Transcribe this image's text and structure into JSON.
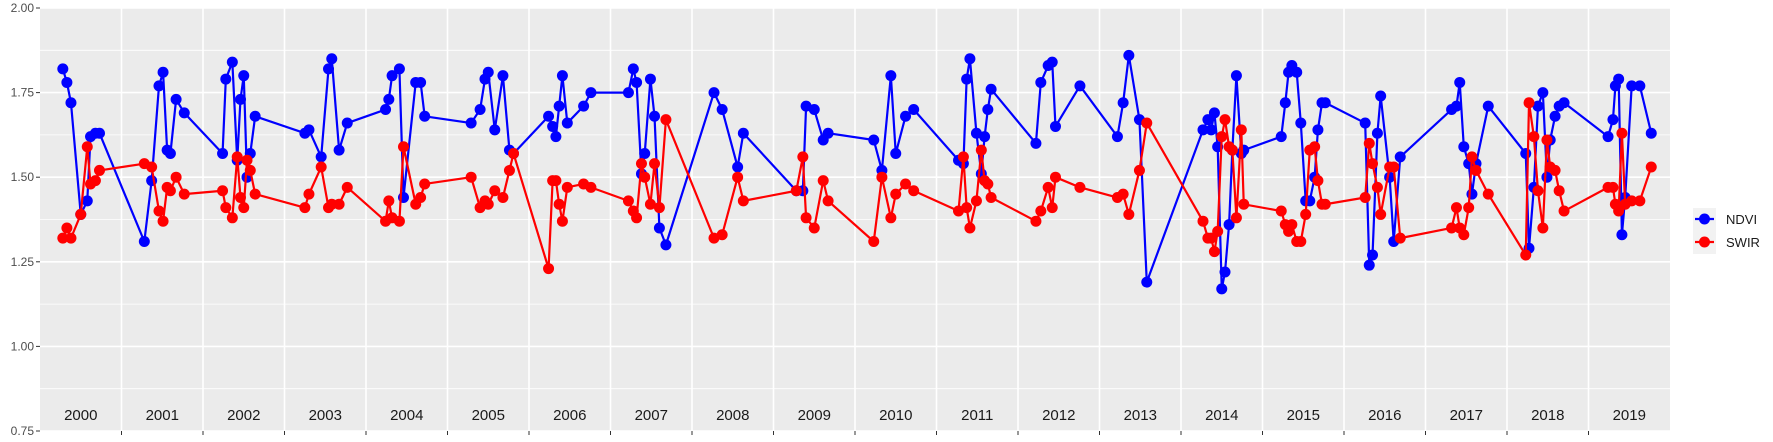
{
  "chart_data": {
    "type": "line",
    "title": "",
    "xlabel": "",
    "ylabel": "",
    "ylim": [
      0.75,
      2.0
    ],
    "yticks": [
      "0.75",
      "1.00",
      "1.25",
      "1.50",
      "1.75",
      "2.00"
    ],
    "ytick_values": [
      0.75,
      1.0,
      1.25,
      1.5,
      1.75,
      2.0
    ],
    "grid": true,
    "legend_position": "right",
    "x_note": "x = year + fraction of year",
    "series": [
      {
        "name": "NDVI",
        "key": "ndvi",
        "color": "#0000FF"
      },
      {
        "name": "SWIR",
        "key": "swir",
        "color": "#FF0000"
      }
    ],
    "years": [
      {
        "year": 2000,
        "t": [
          0.28,
          0.33,
          0.38,
          0.5,
          0.58,
          0.62,
          0.68,
          0.73
        ],
        "ndvi": [
          1.82,
          1.78,
          1.72,
          1.39,
          1.43,
          1.62,
          1.63,
          1.63
        ],
        "swir": [
          1.32,
          1.35,
          1.32,
          1.39,
          1.59,
          1.48,
          1.49,
          1.52
        ]
      },
      {
        "year": 2001,
        "t": [
          0.28,
          0.37,
          0.46,
          0.51,
          0.56,
          0.6,
          0.67,
          0.77
        ],
        "ndvi": [
          1.31,
          1.49,
          1.77,
          1.81,
          1.58,
          1.57,
          1.73,
          1.69
        ],
        "swir": [
          1.54,
          1.53,
          1.4,
          1.37,
          1.47,
          1.46,
          1.5,
          1.45
        ]
      },
      {
        "year": 2002,
        "t": [
          0.24,
          0.28,
          0.36,
          0.42,
          0.46,
          0.5,
          0.54,
          0.58,
          0.64
        ],
        "ndvi": [
          1.57,
          1.79,
          1.84,
          1.55,
          1.73,
          1.8,
          1.5,
          1.57,
          1.68
        ],
        "swir": [
          1.46,
          1.41,
          1.38,
          1.56,
          1.44,
          1.41,
          1.55,
          1.52,
          1.45
        ]
      },
      {
        "year": 2003,
        "t": [
          0.25,
          0.3,
          0.45,
          0.54,
          0.58,
          0.67,
          0.77
        ],
        "ndvi": [
          1.63,
          1.64,
          1.56,
          1.82,
          1.85,
          1.58,
          1.66
        ],
        "swir": [
          1.41,
          1.45,
          1.53,
          1.41,
          1.42,
          1.42,
          1.47
        ]
      },
      {
        "year": 2004,
        "t": [
          0.24,
          0.28,
          0.32,
          0.41,
          0.46,
          0.61,
          0.67,
          0.72
        ],
        "ndvi": [
          1.7,
          1.73,
          1.8,
          1.82,
          1.44,
          1.78,
          1.78,
          1.68
        ],
        "swir": [
          1.37,
          1.43,
          1.38,
          1.37,
          1.59,
          1.42,
          1.44,
          1.48
        ]
      },
      {
        "year": 2005,
        "t": [
          0.29,
          0.4,
          0.46,
          0.5,
          0.58,
          0.68,
          0.76,
          0.81
        ],
        "ndvi": [
          1.66,
          1.7,
          1.79,
          1.81,
          1.64,
          1.8,
          1.58,
          1.57
        ],
        "swir": [
          1.5,
          1.41,
          1.43,
          1.42,
          1.46,
          1.44,
          1.52,
          1.57
        ]
      },
      {
        "year": 2006,
        "t": [
          0.24,
          0.29,
          0.33,
          0.37,
          0.41,
          0.47,
          0.67,
          0.76
        ],
        "ndvi": [
          1.68,
          1.65,
          1.62,
          1.71,
          1.8,
          1.66,
          1.71,
          1.75
        ],
        "swir": [
          1.23,
          1.49,
          1.49,
          1.42,
          1.37,
          1.47,
          1.48,
          1.47
        ]
      },
      {
        "year": 2007,
        "t": [
          0.22,
          0.28,
          0.32,
          0.38,
          0.42,
          0.49,
          0.54,
          0.6,
          0.68
        ],
        "ndvi": [
          1.75,
          1.82,
          1.78,
          1.51,
          1.57,
          1.79,
          1.68,
          1.35,
          1.3
        ],
        "swir": [
          1.43,
          1.4,
          1.38,
          1.54,
          1.5,
          1.42,
          1.54,
          1.41,
          1.67
        ]
      },
      {
        "year": 2008,
        "t": [
          0.27,
          0.37,
          0.56,
          0.63
        ],
        "ndvi": [
          1.75,
          1.7,
          1.53,
          1.63
        ],
        "swir": [
          1.32,
          1.33,
          1.5,
          1.43
        ]
      },
      {
        "year": 2009,
        "t": [
          0.28,
          0.36,
          0.4,
          0.5,
          0.61,
          0.67
        ],
        "ndvi": [
          1.46,
          1.46,
          1.71,
          1.7,
          1.61,
          1.63
        ],
        "swir": [
          1.46,
          1.56,
          1.38,
          1.35,
          1.49,
          1.43
        ]
      },
      {
        "year": 2010,
        "t": [
          0.23,
          0.33,
          0.44,
          0.5,
          0.62,
          0.72
        ],
        "ndvi": [
          1.61,
          1.52,
          1.8,
          1.57,
          1.68,
          1.7
        ],
        "swir": [
          1.31,
          1.5,
          1.38,
          1.45,
          1.48,
          1.46
        ]
      },
      {
        "year": 2011,
        "t": [
          0.27,
          0.33,
          0.37,
          0.41,
          0.49,
          0.55,
          0.59,
          0.63,
          0.67
        ],
        "ndvi": [
          1.55,
          1.54,
          1.79,
          1.85,
          1.63,
          1.51,
          1.62,
          1.7,
          1.76
        ],
        "swir": [
          1.4,
          1.56,
          1.41,
          1.35,
          1.43,
          1.58,
          1.49,
          1.48,
          1.44
        ]
      },
      {
        "year": 2012,
        "t": [
          0.22,
          0.28,
          0.37,
          0.42,
          0.46,
          0.76
        ],
        "ndvi": [
          1.6,
          1.78,
          1.83,
          1.84,
          1.65,
          1.77
        ],
        "swir": [
          1.37,
          1.4,
          1.47,
          1.41,
          1.5,
          1.47
        ]
      },
      {
        "year": 2013,
        "t": [
          0.22,
          0.29,
          0.36,
          0.49,
          0.58
        ],
        "ndvi": [
          1.62,
          1.72,
          1.86,
          1.67,
          1.19
        ],
        "swir": [
          1.44,
          1.45,
          1.39,
          1.52,
          1.66
        ]
      },
      {
        "year": 2014,
        "t": [
          0.27,
          0.33,
          0.37,
          0.41,
          0.45,
          0.5,
          0.54,
          0.59,
          0.63,
          0.68,
          0.74,
          0.77
        ],
        "ndvi": [
          1.64,
          1.67,
          1.64,
          1.69,
          1.59,
          1.17,
          1.22,
          1.36,
          1.58,
          1.8,
          1.57,
          1.58
        ],
        "swir": [
          1.37,
          1.32,
          1.32,
          1.28,
          1.34,
          1.62,
          1.67,
          1.59,
          1.58,
          1.38,
          1.64,
          1.42
        ]
      },
      {
        "year": 2015,
        "t": [
          0.23,
          0.28,
          0.32,
          0.36,
          0.42,
          0.47,
          0.53,
          0.58,
          0.64,
          0.68,
          0.73,
          0.77
        ],
        "ndvi": [
          1.62,
          1.72,
          1.81,
          1.83,
          1.81,
          1.66,
          1.43,
          1.43,
          1.5,
          1.64,
          1.72,
          1.72
        ],
        "swir": [
          1.4,
          1.36,
          1.34,
          1.36,
          1.31,
          1.31,
          1.39,
          1.58,
          1.59,
          1.49,
          1.42,
          1.42
        ]
      },
      {
        "year": 2016,
        "t": [
          0.26,
          0.31,
          0.35,
          0.41,
          0.45,
          0.56,
          0.61,
          0.69
        ],
        "ndvi": [
          1.66,
          1.24,
          1.27,
          1.63,
          1.74,
          1.5,
          1.31,
          1.56
        ],
        "swir": [
          1.44,
          1.6,
          1.54,
          1.47,
          1.39,
          1.53,
          1.53,
          1.32
        ]
      },
      {
        "year": 2017,
        "t": [
          0.32,
          0.38,
          0.42,
          0.47,
          0.53,
          0.57,
          0.62,
          0.77
        ],
        "ndvi": [
          1.7,
          1.71,
          1.78,
          1.59,
          1.54,
          1.45,
          1.54,
          1.71
        ],
        "swir": [
          1.35,
          1.41,
          1.35,
          1.33,
          1.41,
          1.56,
          1.52,
          1.45
        ]
      },
      {
        "year": 2018,
        "t": [
          0.23,
          0.27,
          0.33,
          0.38,
          0.44,
          0.49,
          0.53,
          0.59,
          0.64,
          0.7
        ],
        "ndvi": [
          1.57,
          1.29,
          1.47,
          1.71,
          1.75,
          1.5,
          1.61,
          1.68,
          1.71,
          1.72
        ],
        "swir": [
          1.27,
          1.72,
          1.62,
          1.46,
          1.35,
          1.61,
          1.53,
          1.52,
          1.46,
          1.4
        ]
      },
      {
        "year": 2019,
        "t": [
          0.24,
          0.3,
          0.33,
          0.37,
          0.41,
          0.45,
          0.53,
          0.63,
          0.77
        ],
        "ndvi": [
          1.62,
          1.67,
          1.77,
          1.79,
          1.33,
          1.44,
          1.77,
          1.77,
          1.63
        ],
        "swir": [
          1.47,
          1.47,
          1.42,
          1.4,
          1.63,
          1.42,
          1.43,
          1.43,
          1.53
        ]
      }
    ],
    "year_labels": [
      "2000",
      "2001",
      "2002",
      "2003",
      "2004",
      "2005",
      "2006",
      "2007",
      "2008",
      "2009",
      "2010",
      "2011",
      "2012",
      "2013",
      "2014",
      "2015",
      "2016",
      "2017",
      "2018",
      "2019"
    ]
  }
}
